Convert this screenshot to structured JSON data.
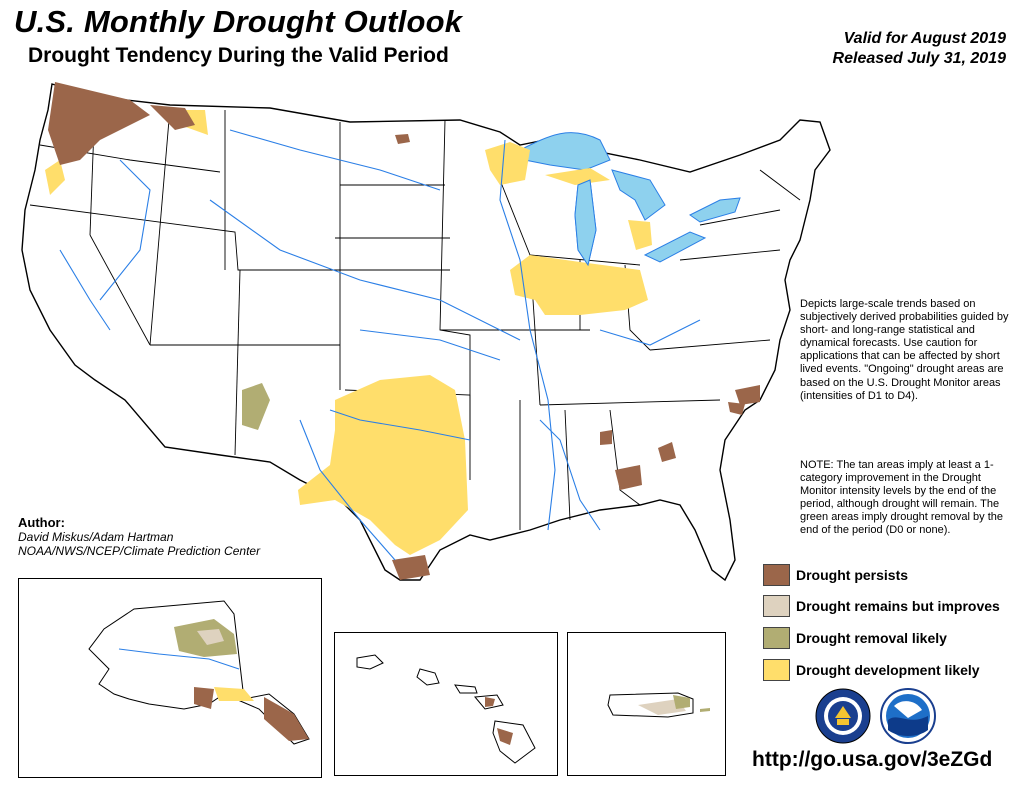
{
  "header": {
    "title": "U.S. Monthly Drought Outlook",
    "subtitle": "Drought Tendency During the Valid Period",
    "valid": "Valid for August 2019",
    "released": "Released July 31, 2019"
  },
  "description": "Depicts large-scale trends based on subjectively derived probabilities guided by short- and long-range statistical and dynamical forecasts. Use caution for applications that can be affected by short lived events. \"Ongoing\" drought areas are based on the U.S. Drought Monitor areas (intensities of D1 to D4).",
  "note": "NOTE: The tan areas imply at least a 1-category improvement in the Drought Monitor intensity levels by the end of the period, although drought will remain. The green areas imply drought removal by the end of the period (D0 or none).",
  "author": {
    "label": "Author:",
    "name": "David Miskus/Adam Hartman",
    "org": "NOAA/NWS/NCEP/Climate Prediction Center"
  },
  "legend": [
    {
      "label": "Drought persists",
      "color": "#9b664a"
    },
    {
      "label": "Drought remains but improves",
      "color": "#ded2bf"
    },
    {
      "label": "Drought removal likely",
      "color": "#b1ad73"
    },
    {
      "label": "Drought development likely",
      "color": "#ffde6b"
    }
  ],
  "url": "http://go.usa.gov/3eZGd",
  "colors": {
    "lakes": "#8ed1ee",
    "rivers": "#2b7fe6",
    "boundaries": "#000000"
  },
  "logos": [
    "noaa-nws-seal",
    "noaa-logo"
  ]
}
